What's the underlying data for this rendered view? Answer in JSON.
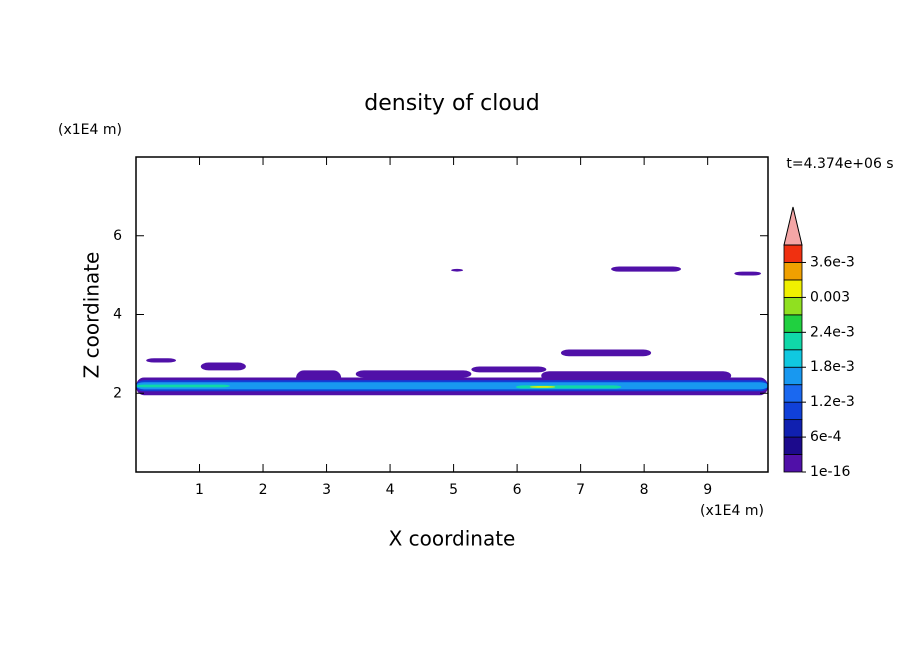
{
  "chart_data": {
    "type": "contour",
    "title": "density of cloud",
    "xlabel": "X coordinate",
    "ylabel": "Z coordinate",
    "xunit": "(x1E4 m)",
    "yunit": "(x1E4 m)",
    "time_label": "t=4.374e+06 s",
    "xlim": [
      0,
      9.95
    ],
    "ylim": [
      0,
      8
    ],
    "xticks": [
      1,
      2,
      3,
      4,
      5,
      6,
      7,
      8,
      9
    ],
    "yticks": [
      2,
      4,
      6
    ],
    "colorbar": {
      "levels": [
        1e-16,
        0.0003,
        0.0006,
        0.0009,
        0.0012,
        0.0015,
        0.0018,
        0.0021,
        0.0024,
        0.0027,
        0.003,
        0.0033,
        0.0036,
        0.0039
      ],
      "colors": [
        "#5010a8",
        "#1c0a8c",
        "#1020b0",
        "#1040d8",
        "#1a68f0",
        "#1898f0",
        "#10c8e0",
        "#10d8a8",
        "#20d040",
        "#90e020",
        "#f0f000",
        "#f0a000",
        "#f03010"
      ],
      "extend_color": "#f4a6a6",
      "ticks": [
        {
          "value": 1e-16,
          "label": "1e-16"
        },
        {
          "value": 0.0006,
          "label": "6e-4"
        },
        {
          "value": 0.0012,
          "label": "1.2e-3"
        },
        {
          "value": 0.0018,
          "label": "1.8e-3"
        },
        {
          "value": 0.0024,
          "label": "2.4e-3"
        },
        0.003,
        {
          "value": 0.0036,
          "label": "3.6e-3"
        }
      ]
    },
    "regions": [
      {
        "x0": 0.16,
        "x1": 0.63,
        "z0": 2.78,
        "z1": 2.89,
        "value": 1e-16
      },
      {
        "x0": 1.02,
        "x1": 1.73,
        "z0": 2.58,
        "z1": 2.78,
        "value": 1e-16
      },
      {
        "x0": 2.52,
        "x1": 3.23,
        "z0": 2.2,
        "z1": 2.58,
        "value": 1e-16
      },
      {
        "x0": 3.46,
        "x1": 5.28,
        "z0": 2.4,
        "z1": 2.58,
        "value": 1e-16
      },
      {
        "x0": 5.28,
        "x1": 6.46,
        "z0": 2.53,
        "z1": 2.68,
        "value": 1e-16
      },
      {
        "x0": 6.69,
        "x1": 8.11,
        "z0": 2.94,
        "z1": 3.11,
        "value": 1e-16
      },
      {
        "x0": 7.48,
        "x1": 8.58,
        "z0": 5.09,
        "z1": 5.22,
        "value": 1e-16
      },
      {
        "x0": 4.96,
        "x1": 5.15,
        "z0": 5.09,
        "z1": 5.16,
        "value": 1e-16
      },
      {
        "x0": 9.42,
        "x1": 9.84,
        "z0": 4.99,
        "z1": 5.09,
        "value": 1e-16
      },
      {
        "x0": 6.38,
        "x1": 9.37,
        "z0": 2.33,
        "z1": 2.56,
        "value": 1e-16
      },
      {
        "x0": 0,
        "x1": 9.95,
        "z0": 1.95,
        "z1": 2.4,
        "value": 1e-16
      },
      {
        "x0": 0,
        "x1": 9.95,
        "z0": 2.05,
        "z1": 2.33,
        "value": 0.0009
      },
      {
        "x0": 0,
        "x1": 9.95,
        "z0": 2.1,
        "z1": 2.28,
        "value": 0.0015
      },
      {
        "x0": 0,
        "x1": 1.48,
        "z0": 2.15,
        "z1": 2.22,
        "value": 0.0021
      },
      {
        "x0": 5.98,
        "x1": 7.64,
        "z0": 2.12,
        "z1": 2.2,
        "value": 0.0021
      },
      {
        "x0": 6.2,
        "x1": 6.6,
        "z0": 2.14,
        "z1": 2.18,
        "value": 0.003
      }
    ]
  }
}
